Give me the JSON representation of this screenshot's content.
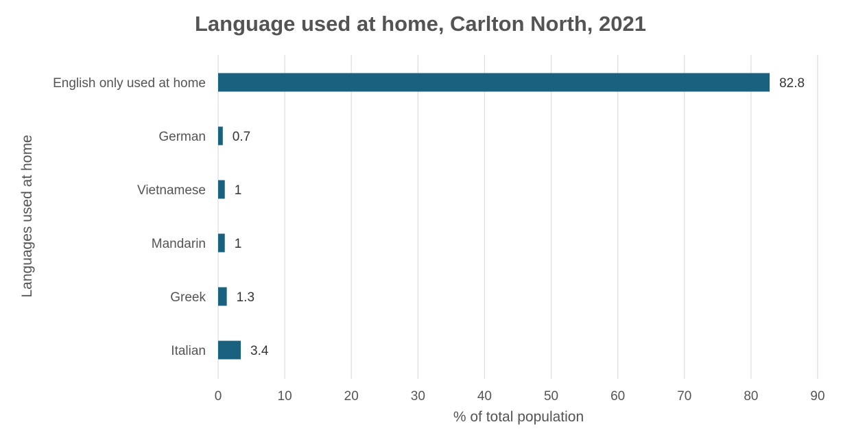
{
  "chart_data": {
    "type": "bar",
    "orientation": "horizontal",
    "title": "Language used at home, Carlton North, 2021",
    "xlabel": "% of total population",
    "ylabel": "Languages used at home",
    "categories": [
      "English only used at home",
      "German",
      "Vietnamese",
      "Mandarin",
      "Greek",
      "Italian"
    ],
    "values": [
      82.8,
      0.7,
      1,
      1,
      1.3,
      3.4
    ],
    "data_labels": [
      "82.8",
      "0.7",
      "1",
      "1",
      "1.3",
      "3.4"
    ],
    "xlim": [
      0,
      90
    ],
    "xticks": [
      0,
      10,
      20,
      30,
      40,
      50,
      60,
      70,
      80,
      90
    ],
    "xtick_labels": [
      "0",
      "10",
      "20",
      "30",
      "40",
      "50",
      "60",
      "70",
      "80",
      "90"
    ],
    "grid": "vertical",
    "bar_color": "#1a6180",
    "grid_color": "#dcdcdc"
  }
}
